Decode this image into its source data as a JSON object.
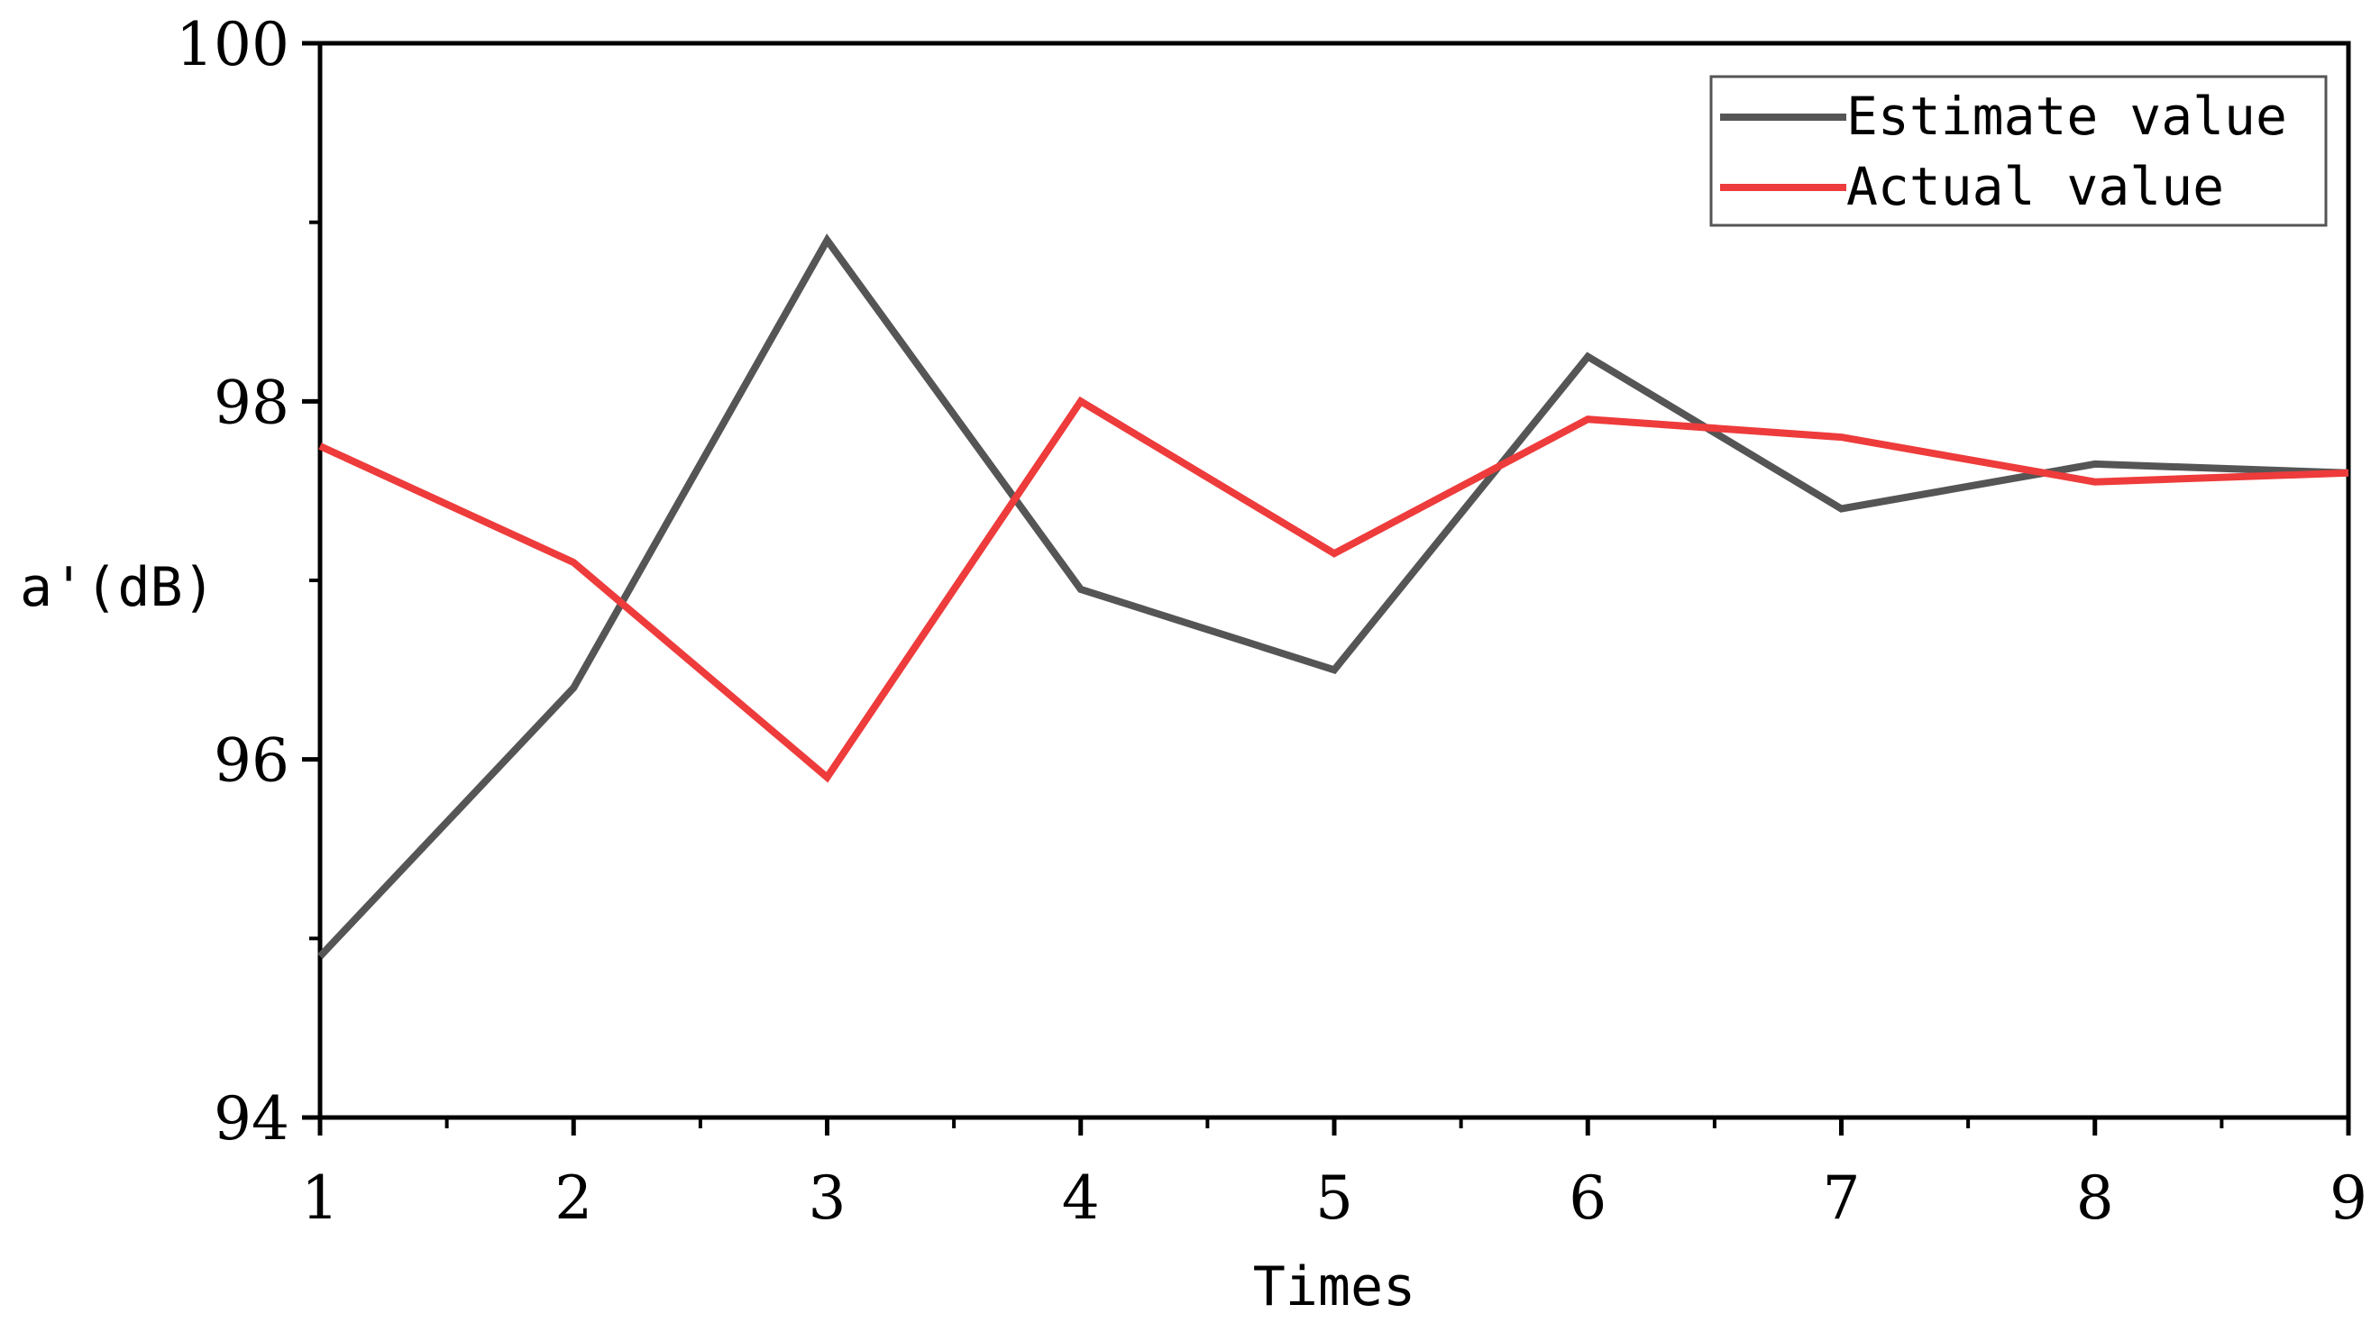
{
  "chart_data": {
    "type": "line",
    "title": "",
    "xlabel": "Times",
    "ylabel": "a'(dB)",
    "x": [
      1,
      2,
      3,
      4,
      5,
      6,
      7,
      8,
      9
    ],
    "xlim": [
      1,
      9
    ],
    "ylim": [
      94,
      100
    ],
    "yticks": [
      94,
      96,
      98,
      100
    ],
    "grid": false,
    "legend_position": "top-right",
    "series": [
      {
        "name": "Estimate value",
        "color": "#555555",
        "values": [
          94.9,
          96.4,
          98.9,
          96.95,
          96.5,
          98.25,
          97.4,
          97.65,
          97.6
        ]
      },
      {
        "name": "Actual value",
        "color": "#ee3b3b",
        "values": [
          97.75,
          97.1,
          95.9,
          98.0,
          97.15,
          97.9,
          97.8,
          97.55,
          97.6
        ]
      }
    ]
  }
}
